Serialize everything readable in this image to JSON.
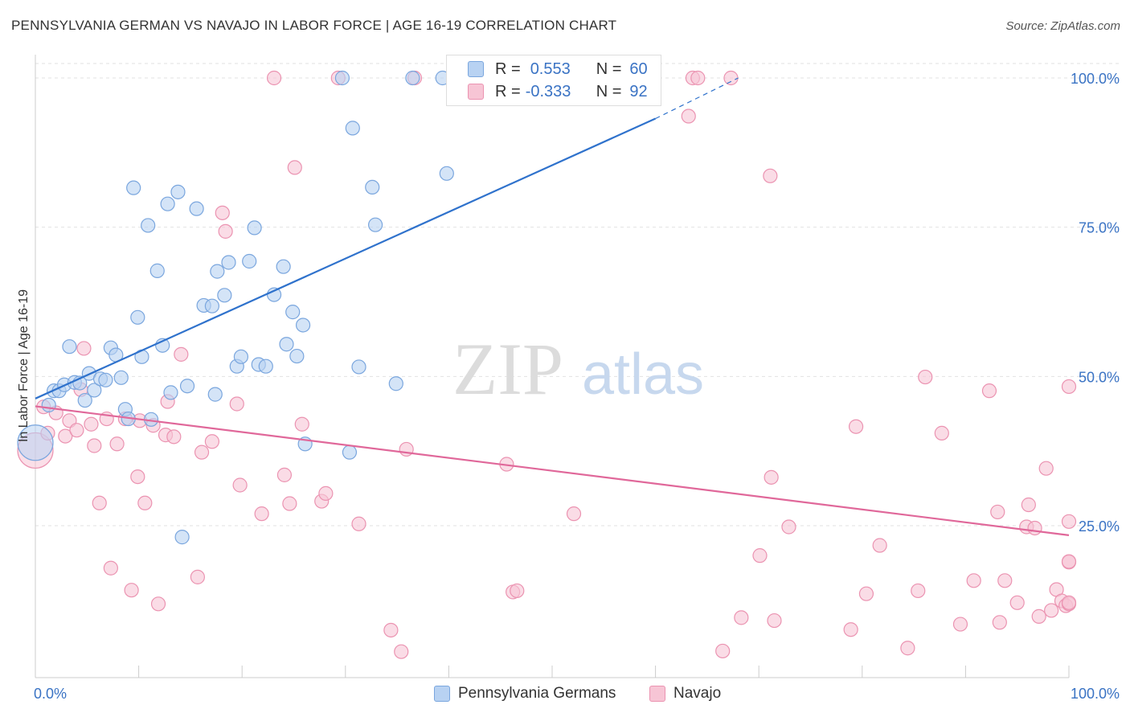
{
  "header": {
    "title": "PENNSYLVANIA GERMAN VS NAVAJO IN LABOR FORCE | AGE 16-19 CORRELATION CHART",
    "source": "Source: ZipAtlas.com"
  },
  "watermark": {
    "zip": "ZIP",
    "atlas": "atlas"
  },
  "legend": {
    "rows": [
      {
        "r_label": "R =",
        "r_value": "0.553",
        "n_label": "N =",
        "n_value": "60"
      },
      {
        "r_label": "R =",
        "r_value": "-0.333",
        "n_label": "N =",
        "n_value": "92"
      }
    ]
  },
  "colors": {
    "blue_fill": "#b8d2f2",
    "blue_stroke": "#7aa6de",
    "blue_line": "#2f72cc",
    "pink_fill": "#f7c5d5",
    "pink_stroke": "#eb93b1",
    "pink_line": "#e0689a",
    "axis_label": "#3a73c4",
    "grid": "#e2e2e2"
  },
  "chart_data": {
    "type": "scatter",
    "title": "PENNSYLVANIA GERMAN VS NAVAJO IN LABOR FORCE | AGE 16-19 CORRELATION CHART",
    "xlabel": "",
    "ylabel": "In Labor Force | Age 16-19",
    "xlim": [
      0,
      100
    ],
    "ylim": [
      0,
      102
    ],
    "x_tick_labels": [
      "0.0%",
      "100.0%"
    ],
    "y_ticks": [
      25,
      50,
      75,
      100
    ],
    "y_tick_labels": [
      "25.0%",
      "50.0%",
      "75.0%",
      "100.0%"
    ],
    "grid": true,
    "legend_position": "top-center",
    "series": [
      {
        "name": "Pennsylvania Germans",
        "color": "#b8d2f2",
        "r": 0.553,
        "n": 60,
        "trend": {
          "x": [
            0,
            60
          ],
          "y": [
            46.3,
            93.2
          ],
          "dashed_to": [
            68,
            100
          ]
        },
        "points": [
          [
            0,
            38.9
          ],
          [
            1.3,
            45.2
          ],
          [
            1.8,
            47.6
          ],
          [
            2.3,
            47.6
          ],
          [
            2.8,
            48.6
          ],
          [
            3.3,
            55.0
          ],
          [
            3.8,
            49.0
          ],
          [
            4.3,
            48.9
          ],
          [
            4.8,
            46.0
          ],
          [
            5.2,
            50.5
          ],
          [
            5.7,
            47.7
          ],
          [
            6.3,
            49.6
          ],
          [
            6.8,
            49.4
          ],
          [
            7.3,
            54.8
          ],
          [
            7.8,
            53.6
          ],
          [
            8.3,
            49.8
          ],
          [
            8.7,
            44.5
          ],
          [
            9.0,
            42.9
          ],
          [
            9.5,
            81.6
          ],
          [
            9.9,
            59.9
          ],
          [
            10.3,
            53.3
          ],
          [
            10.9,
            75.3
          ],
          [
            11.2,
            42.8
          ],
          [
            11.8,
            67.7
          ],
          [
            12.3,
            55.2
          ],
          [
            12.8,
            78.9
          ],
          [
            13.1,
            47.3
          ],
          [
            13.8,
            80.9
          ],
          [
            14.2,
            23.1
          ],
          [
            14.7,
            48.4
          ],
          [
            15.6,
            78.1
          ],
          [
            16.3,
            61.9
          ],
          [
            17.1,
            61.8
          ],
          [
            17.4,
            47.0
          ],
          [
            17.6,
            67.6
          ],
          [
            18.3,
            63.6
          ],
          [
            18.7,
            69.1
          ],
          [
            19.5,
            51.7
          ],
          [
            19.9,
            53.3
          ],
          [
            20.7,
            69.3
          ],
          [
            21.2,
            74.9
          ],
          [
            21.6,
            52.0
          ],
          [
            22.3,
            51.7
          ],
          [
            23.1,
            63.7
          ],
          [
            24.0,
            68.4
          ],
          [
            24.3,
            55.4
          ],
          [
            24.9,
            60.8
          ],
          [
            25.3,
            53.4
          ],
          [
            25.9,
            58.6
          ],
          [
            26.1,
            38.7
          ],
          [
            29.7,
            100
          ],
          [
            30.4,
            37.3
          ],
          [
            30.7,
            91.6
          ],
          [
            31.3,
            51.6
          ],
          [
            32.6,
            81.7
          ],
          [
            32.9,
            75.4
          ],
          [
            34.9,
            48.8
          ],
          [
            36.5,
            100
          ],
          [
            39.4,
            100
          ],
          [
            39.8,
            84.0
          ]
        ]
      },
      {
        "name": "Navajo",
        "color": "#f7c5d5",
        "r": -0.333,
        "n": 92,
        "trend": {
          "x": [
            0,
            100
          ],
          "y": [
            45.0,
            23.4
          ]
        },
        "points": [
          [
            0,
            37.6
          ],
          [
            0.8,
            44.9
          ],
          [
            1.2,
            40.5
          ],
          [
            2.0,
            43.9
          ],
          [
            2.9,
            40.0
          ],
          [
            3.3,
            42.6
          ],
          [
            4.0,
            41.0
          ],
          [
            4.4,
            47.8
          ],
          [
            4.7,
            54.7
          ],
          [
            5.4,
            42.0
          ],
          [
            5.7,
            38.4
          ],
          [
            6.2,
            28.8
          ],
          [
            6.9,
            42.9
          ],
          [
            7.3,
            17.9
          ],
          [
            7.9,
            38.7
          ],
          [
            8.7,
            42.9
          ],
          [
            9.3,
            14.2
          ],
          [
            9.9,
            33.2
          ],
          [
            10.1,
            42.6
          ],
          [
            10.6,
            28.8
          ],
          [
            11.4,
            41.8
          ],
          [
            11.9,
            11.9
          ],
          [
            12.6,
            40.2
          ],
          [
            12.8,
            45.8
          ],
          [
            13.4,
            39.9
          ],
          [
            14.1,
            53.7
          ],
          [
            15.7,
            16.4
          ],
          [
            16.1,
            37.3
          ],
          [
            17.1,
            39.1
          ],
          [
            18.1,
            77.4
          ],
          [
            18.4,
            74.3
          ],
          [
            19.5,
            45.4
          ],
          [
            19.8,
            31.8
          ],
          [
            21.9,
            27.0
          ],
          [
            23.1,
            100
          ],
          [
            24.1,
            33.5
          ],
          [
            24.6,
            28.7
          ],
          [
            25.1,
            85.0
          ],
          [
            25.8,
            42.0
          ],
          [
            27.7,
            29.1
          ],
          [
            28.1,
            30.4
          ],
          [
            29.3,
            100
          ],
          [
            31.3,
            25.3
          ],
          [
            34.4,
            7.5
          ],
          [
            35.4,
            3.9
          ],
          [
            35.9,
            37.8
          ],
          [
            36.7,
            100
          ],
          [
            45.6,
            35.3
          ],
          [
            46.2,
            13.9
          ],
          [
            46.6,
            14.1
          ],
          [
            52.1,
            27.0
          ],
          [
            63.2,
            93.6
          ],
          [
            63.6,
            100
          ],
          [
            64.1,
            100
          ],
          [
            67.3,
            100
          ],
          [
            71.1,
            83.6
          ],
          [
            66.5,
            4.0
          ],
          [
            68.3,
            9.6
          ],
          [
            70.1,
            20.0
          ],
          [
            71.2,
            33.1
          ],
          [
            71.5,
            9.1
          ],
          [
            72.9,
            24.8
          ],
          [
            78.9,
            7.6
          ],
          [
            79.4,
            41.6
          ],
          [
            80.4,
            13.6
          ],
          [
            81.7,
            21.7
          ],
          [
            84.4,
            4.5
          ],
          [
            85.4,
            14.1
          ],
          [
            86.1,
            49.9
          ],
          [
            87.7,
            40.5
          ],
          [
            89.5,
            8.5
          ],
          [
            90.8,
            15.8
          ],
          [
            92.3,
            47.6
          ],
          [
            93.1,
            27.3
          ],
          [
            93.3,
            8.8
          ],
          [
            93.8,
            15.8
          ],
          [
            95.0,
            12.1
          ],
          [
            95.9,
            24.8
          ],
          [
            96.1,
            28.5
          ],
          [
            96.7,
            24.6
          ],
          [
            97.1,
            9.8
          ],
          [
            97.8,
            34.6
          ],
          [
            98.3,
            10.8
          ],
          [
            98.8,
            14.3
          ],
          [
            99.3,
            12.4
          ],
          [
            99.7,
            11.6
          ],
          [
            100,
            11.9
          ],
          [
            100,
            25.7
          ],
          [
            100,
            18.9
          ],
          [
            100,
            19.0
          ],
          [
            100,
            48.3
          ],
          [
            100,
            12.1
          ]
        ]
      }
    ]
  },
  "bottom_legend": {
    "items": [
      {
        "label": "Pennsylvania Germans"
      },
      {
        "label": "Navajo"
      }
    ]
  }
}
